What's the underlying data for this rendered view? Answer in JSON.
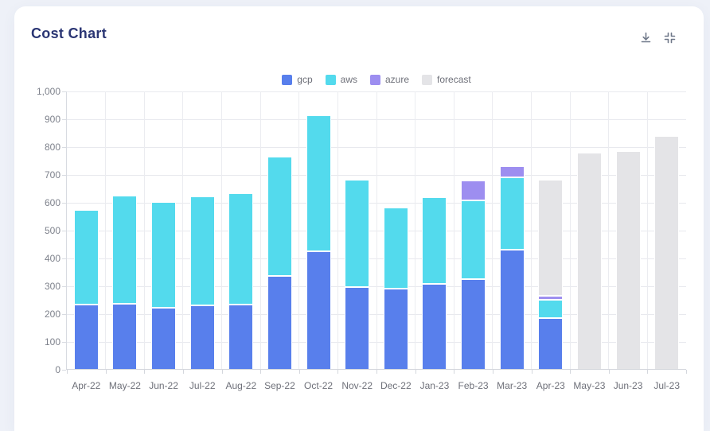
{
  "page": {
    "background_color": "#eef1f8",
    "card_background": "#ffffff"
  },
  "header": {
    "title": "Cost Chart",
    "download_icon": "download-icon",
    "collapse_icon": "collapse-icon"
  },
  "colors": {
    "title": "#2b3674",
    "axis_text": "#6e7079",
    "gridline": "#e8e9ee",
    "axis_line": "#d4d7dd"
  },
  "chart_data": {
    "type": "bar",
    "stacked": true,
    "title": "Cost Chart",
    "xlabel": "",
    "ylabel": "",
    "ylim": [
      0,
      1000
    ],
    "y_tick_step": 100,
    "y_tick_labels": [
      "0",
      "100",
      "200",
      "300",
      "400",
      "500",
      "600",
      "700",
      "800",
      "900",
      "1,000"
    ],
    "grid": true,
    "legend_position": "top",
    "categories": [
      "Apr-22",
      "May-22",
      "Jun-22",
      "Jul-22",
      "Aug-22",
      "Sep-22",
      "Oct-22",
      "Nov-22",
      "Dec-22",
      "Jan-23",
      "Feb-23",
      "Mar-23",
      "Apr-23",
      "May-23",
      "Jun-23",
      "Jul-23"
    ],
    "series": [
      {
        "name": "gcp",
        "color": "#587fec",
        "values": [
          235,
          236,
          222,
          232,
          235,
          338,
          427,
          298,
          292,
          308,
          326,
          432,
          186,
          0,
          0,
          0
        ]
      },
      {
        "name": "aws",
        "color": "#53daed",
        "values": [
          340,
          389,
          381,
          392,
          400,
          428,
          488,
          387,
          291,
          310,
          284,
          261,
          66,
          0,
          0,
          0
        ]
      },
      {
        "name": "azure",
        "color": "#9d8ef0",
        "values": [
          0,
          0,
          0,
          0,
          0,
          0,
          0,
          0,
          0,
          0,
          71,
          41,
          15,
          0,
          0,
          0
        ]
      },
      {
        "name": "forecast",
        "color": "#e4e4e7",
        "values": [
          0,
          0,
          0,
          0,
          0,
          0,
          0,
          0,
          0,
          0,
          0,
          0,
          418,
          779,
          786,
          841
        ]
      }
    ]
  }
}
